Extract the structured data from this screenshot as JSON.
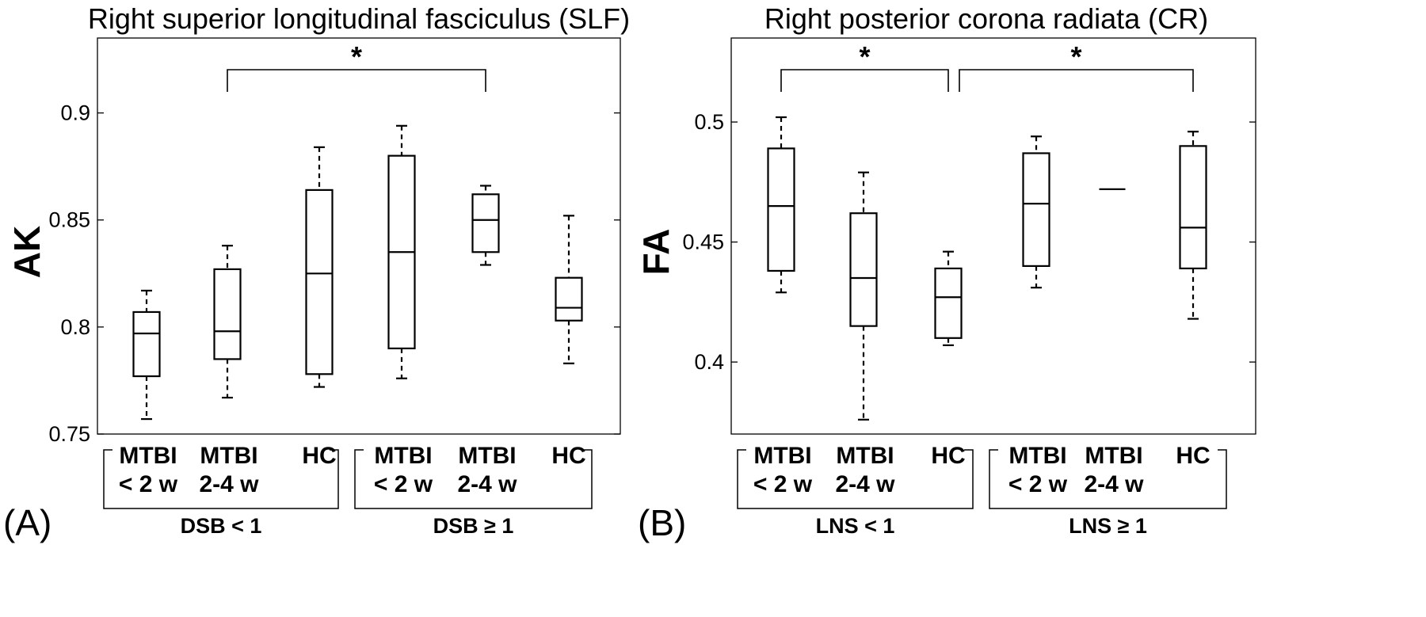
{
  "chart_data": [
    {
      "type": "box",
      "panel_label": "(A)",
      "title": "Right superior longitudinal fasciculus (SLF)",
      "ylabel": "AK",
      "ylim": [
        0.75,
        0.935
      ],
      "yticks": [
        0.75,
        0.8,
        0.85,
        0.9
      ],
      "ytick_labels": [
        "0.75",
        "0.8",
        "0.85",
        "0.9"
      ],
      "categories": [
        {
          "line1": "MTBI",
          "line2": "< 2 w"
        },
        {
          "line1": "MTBI",
          "line2": "2-4 w"
        },
        {
          "line1": "HC",
          "line2": ""
        },
        {
          "line1": "MTBI",
          "line2": "< 2 w"
        },
        {
          "line1": "MTBI",
          "line2": "2-4 w"
        },
        {
          "line1": "HC",
          "line2": ""
        }
      ],
      "groups": [
        {
          "label": "DSB < 1",
          "members": [
            0,
            1,
            2
          ]
        },
        {
          "label": "DSB ≥ 1",
          "members": [
            3,
            4,
            5
          ]
        }
      ],
      "boxes": [
        {
          "min": 0.757,
          "q1": 0.777,
          "median": 0.797,
          "q3": 0.807,
          "max": 0.817
        },
        {
          "min": 0.767,
          "q1": 0.785,
          "median": 0.798,
          "q3": 0.827,
          "max": 0.838
        },
        {
          "min": 0.772,
          "q1": 0.778,
          "median": 0.825,
          "q3": 0.864,
          "max": 0.884
        },
        {
          "min": 0.776,
          "q1": 0.79,
          "median": 0.835,
          "q3": 0.88,
          "max": 0.894
        },
        {
          "min": 0.829,
          "q1": 0.835,
          "median": 0.85,
          "q3": 0.862,
          "max": 0.866
        },
        {
          "min": 0.783,
          "q1": 0.803,
          "median": 0.809,
          "q3": 0.823,
          "max": 0.852
        }
      ],
      "significance": [
        {
          "from": 1,
          "to": 4,
          "label": "*"
        }
      ]
    },
    {
      "type": "box",
      "panel_label": "(B)",
      "title": "Right posterior corona radiata (CR)",
      "ylabel": "FA",
      "ylim": [
        0.37,
        0.535
      ],
      "yticks": [
        0.4,
        0.45,
        0.5
      ],
      "ytick_labels": [
        "0.4",
        "0.45",
        "0.5"
      ],
      "categories": [
        {
          "line1": "MTBI",
          "line2": "< 2 w"
        },
        {
          "line1": "MTBI",
          "line2": "2-4 w"
        },
        {
          "line1": "HC",
          "line2": ""
        },
        {
          "line1": "MTBI",
          "line2": "< 2 w"
        },
        {
          "line1": "MTBI",
          "line2": "2-4 w"
        },
        {
          "line1": "HC",
          "line2": ""
        }
      ],
      "groups": [
        {
          "label": "LNS < 1",
          "members": [
            0,
            1,
            2
          ]
        },
        {
          "label": "LNS ≥ 1",
          "members": [
            3,
            4,
            5
          ]
        }
      ],
      "boxes": [
        {
          "min": 0.429,
          "q1": 0.438,
          "median": 0.465,
          "q3": 0.489,
          "max": 0.502
        },
        {
          "min": 0.376,
          "q1": 0.415,
          "median": 0.435,
          "q3": 0.462,
          "max": 0.479
        },
        {
          "min": 0.407,
          "q1": 0.41,
          "median": 0.427,
          "q3": 0.439,
          "max": 0.446
        },
        {
          "min": 0.431,
          "q1": 0.44,
          "median": 0.466,
          "q3": 0.487,
          "max": 0.494
        },
        {
          "min": 0.472,
          "q1": 0.472,
          "median": 0.472,
          "q3": 0.472,
          "max": 0.472
        },
        {
          "min": 0.418,
          "q1": 0.439,
          "median": 0.456,
          "q3": 0.49,
          "max": 0.496
        }
      ],
      "significance": [
        {
          "from": 0,
          "to": 2,
          "label": "*"
        },
        {
          "from": 2,
          "to": 5,
          "label": "*"
        }
      ]
    }
  ]
}
